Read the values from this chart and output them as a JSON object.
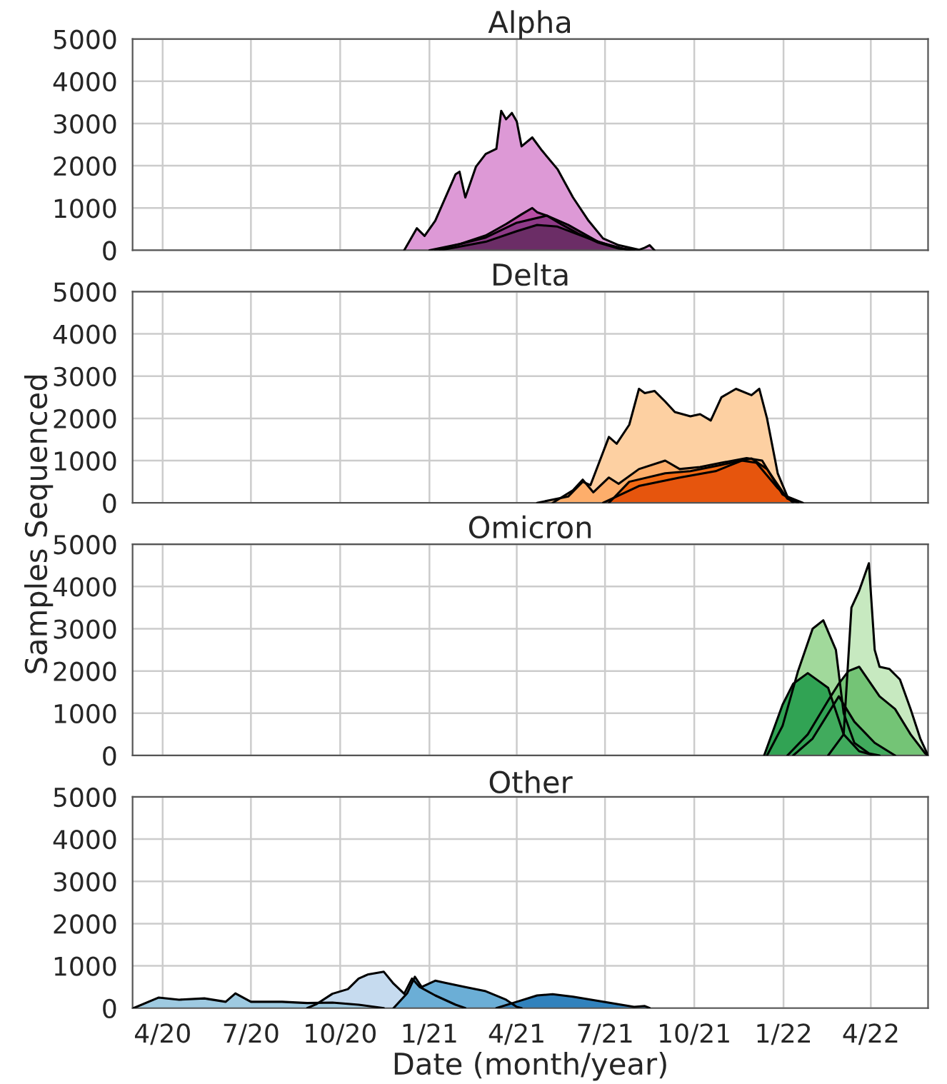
{
  "chart_data": [
    {
      "type": "area",
      "title": "Alpha",
      "xlim": [
        "2020-03-01",
        "2022-05-30"
      ],
      "ylim": [
        0,
        5000
      ],
      "yticks": [
        0,
        1000,
        2000,
        3000,
        4000,
        5000
      ],
      "tick_labels": "y",
      "grid": true,
      "series": [
        {
          "color": "#dd99d6",
          "x": [
            "2020-12-06",
            "2020-12-19",
            "2020-12-27",
            "2021-01-07",
            "2021-01-28",
            "2021-02-01",
            "2021-02-07",
            "2021-02-18",
            "2021-02-28",
            "2021-03-11",
            "2021-03-16",
            "2021-03-21",
            "2021-03-27",
            "2021-04-01",
            "2021-04-06",
            "2021-04-17",
            "2021-04-27",
            "2021-05-13",
            "2021-05-29",
            "2021-06-14",
            "2021-06-29",
            "2021-07-15",
            "2021-08-05",
            "2021-08-11",
            "2021-08-16",
            "2021-08-21"
          ],
          "values": [
            0,
            520,
            340,
            700,
            1800,
            1860,
            1250,
            1980,
            2280,
            2400,
            3300,
            3100,
            3250,
            3050,
            2460,
            2670,
            2360,
            1920,
            1250,
            700,
            280,
            120,
            10,
            60,
            120,
            0
          ]
        },
        {
          "color": "#b84fa5",
          "x": [
            "2021-01-01",
            "2021-02-02",
            "2021-02-28",
            "2021-03-21",
            "2021-04-06",
            "2021-04-17",
            "2021-04-22",
            "2021-05-02",
            "2021-05-18",
            "2021-06-03",
            "2021-06-24",
            "2021-07-15",
            "2021-08-05"
          ],
          "values": [
            0,
            150,
            350,
            620,
            850,
            1000,
            900,
            820,
            600,
            400,
            180,
            40,
            0
          ]
        },
        {
          "color": "#8e3a87",
          "x": [
            "2021-01-07",
            "2021-02-28",
            "2021-04-01",
            "2021-05-02",
            "2021-05-24",
            "2021-06-24",
            "2021-07-26"
          ],
          "values": [
            0,
            300,
            650,
            820,
            600,
            200,
            0
          ]
        },
        {
          "color": "#6b2d66",
          "x": [
            "2021-01-12",
            "2021-02-28",
            "2021-04-01",
            "2021-04-22",
            "2021-05-13",
            "2021-06-14",
            "2021-07-15",
            "2021-07-31"
          ],
          "values": [
            0,
            200,
            450,
            600,
            560,
            280,
            50,
            0
          ]
        }
      ]
    },
    {
      "type": "area",
      "title": "Delta",
      "ylabel": "Samples Sequenced",
      "xlim": [
        "2020-03-01",
        "2022-05-30"
      ],
      "ylim": [
        0,
        5000
      ],
      "yticks": [
        0,
        1000,
        2000,
        3000,
        4000,
        5000
      ],
      "tick_labels": "y",
      "grid": true,
      "series": [
        {
          "color": "#fdd0a2",
          "x": [
            "2021-04-22",
            "2021-05-24",
            "2021-06-08",
            "2021-06-16",
            "2021-06-24",
            "2021-07-05",
            "2021-07-13",
            "2021-07-26",
            "2021-08-05",
            "2021-08-11",
            "2021-08-21",
            "2021-09-01",
            "2021-09-11",
            "2021-09-27",
            "2021-10-07",
            "2021-10-18",
            "2021-10-29",
            "2021-11-13",
            "2021-11-29",
            "2021-12-07",
            "2021-12-15",
            "2021-12-26",
            "2022-01-05",
            "2022-01-21"
          ],
          "values": [
            0,
            150,
            500,
            420,
            900,
            1560,
            1400,
            1850,
            2700,
            2600,
            2650,
            2400,
            2150,
            2050,
            2100,
            1950,
            2500,
            2700,
            2550,
            2700,
            2000,
            700,
            150,
            0
          ]
        },
        {
          "color": "#fdae6b",
          "x": [
            "2021-05-08",
            "2021-05-29",
            "2021-06-08",
            "2021-06-19",
            "2021-07-05",
            "2021-07-15",
            "2021-08-05",
            "2021-09-01",
            "2021-09-16",
            "2021-10-07",
            "2021-10-29",
            "2021-11-24",
            "2021-12-10",
            "2021-12-31",
            "2022-01-16"
          ],
          "values": [
            0,
            300,
            550,
            250,
            600,
            450,
            800,
            1000,
            800,
            850,
            950,
            1060,
            1000,
            200,
            0
          ]
        },
        {
          "color": "#f16913",
          "x": [
            "2021-07-05",
            "2021-07-26",
            "2021-09-01",
            "2021-09-27",
            "2021-10-29",
            "2021-11-29",
            "2021-12-15",
            "2022-01-05",
            "2022-01-16"
          ],
          "values": [
            0,
            500,
            700,
            750,
            900,
            1050,
            800,
            100,
            0
          ]
        },
        {
          "color": "#e6550d",
          "x": [
            "2021-06-29",
            "2021-08-05",
            "2021-09-16",
            "2021-10-23",
            "2021-11-19",
            "2021-12-04",
            "2021-12-26",
            "2022-01-11"
          ],
          "values": [
            0,
            400,
            600,
            750,
            1000,
            950,
            350,
            0
          ]
        }
      ]
    },
    {
      "type": "area",
      "title": "Omicron",
      "xlim": [
        "2020-03-01",
        "2022-05-30"
      ],
      "ylim": [
        0,
        5000
      ],
      "yticks": [
        0,
        1000,
        2000,
        3000,
        4000,
        5000
      ],
      "tick_labels": "y",
      "grid": true,
      "series": [
        {
          "color": "#c7e9c0",
          "x": [
            "2022-02-16",
            "2022-03-04",
            "2022-03-12",
            "2022-03-20",
            "2022-03-30",
            "2022-04-05",
            "2022-04-10",
            "2022-04-20",
            "2022-05-01",
            "2022-05-12",
            "2022-05-22",
            "2022-05-30"
          ],
          "values": [
            0,
            500,
            3500,
            3900,
            4550,
            2500,
            2100,
            2050,
            1800,
            1100,
            400,
            0
          ]
        },
        {
          "color": "#a1d99b",
          "x": [
            "2021-12-15",
            "2021-12-31",
            "2022-01-16",
            "2022-01-31",
            "2022-02-11",
            "2022-02-24",
            "2022-03-04",
            "2022-03-15",
            "2022-03-30",
            "2022-04-10"
          ],
          "values": [
            0,
            700,
            2000,
            3000,
            3200,
            2500,
            1000,
            300,
            50,
            0
          ]
        },
        {
          "color": "#74c476",
          "x": [
            "2022-01-05",
            "2022-01-26",
            "2022-02-16",
            "2022-02-27",
            "2022-03-09",
            "2022-03-20",
            "2022-04-10",
            "2022-04-26",
            "2022-05-12",
            "2022-05-27",
            "2022-05-30"
          ],
          "values": [
            0,
            500,
            1300,
            1700,
            2000,
            2100,
            1400,
            1100,
            500,
            50,
            0
          ]
        },
        {
          "color": "#31a354",
          "x": [
            "2021-12-12",
            "2021-12-31",
            "2022-01-11",
            "2022-01-26",
            "2022-02-16",
            "2022-03-04",
            "2022-03-20",
            "2022-04-05"
          ],
          "values": [
            0,
            1200,
            1700,
            1950,
            1600,
            500,
            100,
            0
          ]
        },
        {
          "color": "#41ab5d",
          "x": [
            "2022-01-11",
            "2022-01-31",
            "2022-02-27",
            "2022-03-15",
            "2022-04-05",
            "2022-04-26"
          ],
          "values": [
            0,
            400,
            1400,
            800,
            300,
            0
          ]
        }
      ]
    },
    {
      "type": "area",
      "title": "Other",
      "xlabel": "Date (month/year)",
      "xlim": [
        "2020-03-01",
        "2022-05-30"
      ],
      "ylim": [
        0,
        5000
      ],
      "yticks": [
        0,
        1000,
        2000,
        3000,
        4000,
        5000
      ],
      "xticks": [
        {
          "value": "2020-04-01",
          "label": "4/20"
        },
        {
          "value": "2020-07-01",
          "label": "7/20"
        },
        {
          "value": "2020-10-01",
          "label": "10/20"
        },
        {
          "value": "2021-01-01",
          "label": "1/21"
        },
        {
          "value": "2021-04-01",
          "label": "4/21"
        },
        {
          "value": "2021-07-01",
          "label": "7/21"
        },
        {
          "value": "2021-10-01",
          "label": "10/21"
        },
        {
          "value": "2022-01-01",
          "label": "1/22"
        },
        {
          "value": "2022-04-01",
          "label": "4/22"
        }
      ],
      "grid": true,
      "series": [
        {
          "color": "#c6dbef",
          "x": [
            "2020-08-28",
            "2020-09-07",
            "2020-09-23",
            "2020-10-09",
            "2020-10-20",
            "2020-10-30",
            "2020-11-15",
            "2020-11-25",
            "2020-12-06",
            "2020-12-14",
            "2020-12-22",
            "2021-01-07",
            "2021-01-28",
            "2021-02-07"
          ],
          "values": [
            0,
            100,
            340,
            450,
            700,
            800,
            860,
            580,
            340,
            700,
            500,
            300,
            80,
            0
          ]
        },
        {
          "color": "#9ecae1",
          "x": [
            "2020-03-02",
            "2020-03-28",
            "2020-04-18",
            "2020-05-14",
            "2020-06-05",
            "2020-06-15",
            "2020-07-01",
            "2020-08-02",
            "2020-08-28",
            "2020-09-23",
            "2020-10-20",
            "2020-11-15"
          ],
          "values": [
            0,
            250,
            200,
            230,
            150,
            350,
            150,
            150,
            120,
            130,
            80,
            0
          ]
        },
        {
          "color": "#6baed6",
          "x": [
            "2020-11-25",
            "2020-12-09",
            "2020-12-17",
            "2020-12-24",
            "2021-01-07",
            "2021-01-17",
            "2021-02-07",
            "2021-02-28",
            "2021-03-21",
            "2021-04-01",
            "2021-04-06"
          ],
          "values": [
            0,
            350,
            740,
            500,
            650,
            600,
            500,
            400,
            200,
            30,
            0
          ]
        },
        {
          "color": "#3182bd",
          "x": [
            "2021-03-11",
            "2021-04-01",
            "2021-04-22",
            "2021-05-08",
            "2021-05-29",
            "2021-06-29",
            "2021-07-31",
            "2021-08-11",
            "2021-08-16"
          ],
          "values": [
            0,
            150,
            300,
            330,
            270,
            150,
            30,
            50,
            0
          ]
        }
      ]
    }
  ]
}
